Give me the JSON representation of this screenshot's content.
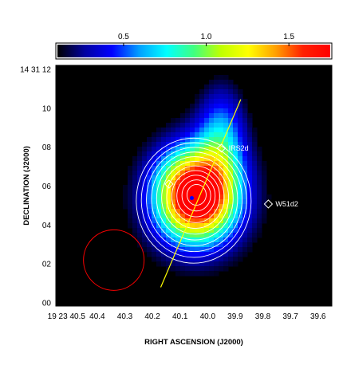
{
  "chart_data": {
    "type": "heatmap",
    "title": "",
    "xlabel": "RIGHT ASCENSION (J2000)",
    "ylabel": "DECLINATION (J2000)",
    "colorbar": {
      "ticks": [
        0.5,
        1.0,
        1.5
      ],
      "tick_labels": [
        "0.5",
        "1.0",
        "1.5"
      ],
      "range": [
        0.1,
        1.75
      ],
      "colormap": [
        "#000000",
        "#0000a0",
        "#0000ff",
        "#00a0ff",
        "#00ffff",
        "#40ff80",
        "#c0ff00",
        "#ffff00",
        "#ffa000",
        "#ff2000",
        "#ff0000"
      ]
    },
    "x_axis": {
      "range": [
        40.55,
        39.55
      ],
      "ticks": [
        40.5,
        40.4,
        40.3,
        40.2,
        40.1,
        40.0,
        39.9,
        39.8,
        39.7,
        39.6
      ],
      "tick_labels": [
        "19 23 40.5",
        "40.4",
        "40.3",
        "40.2",
        "40.1",
        "40.0",
        "39.9",
        "39.8",
        "39.7",
        "39.6"
      ]
    },
    "y_axis": {
      "range": [
        -0.16,
        12.2
      ],
      "ticks": [
        0,
        2,
        4,
        6,
        8,
        10,
        12
      ],
      "tick_labels": [
        "00",
        "02",
        "04",
        "06",
        "08",
        "10",
        "14 31 12"
      ]
    },
    "sources": [
      {
        "name": "IRS2d",
        "ra": 39.95,
        "dec": 7.95,
        "marker": "diamond",
        "color": "#ffffff"
      },
      {
        "name": "W51d2",
        "ra": 39.78,
        "dec": 5.08,
        "marker": "diamond",
        "color": "#ffffff"
      },
      {
        "name": "",
        "ra": 40.14,
        "dec": 6.1,
        "marker": "diamond",
        "color": "#ffffff",
        "label_color": "#c040ff"
      }
    ],
    "emission_peak": {
      "ra": 40.04,
      "dec": 5.55,
      "peak_value": 1.75
    },
    "contours": {
      "color": "#ffffff",
      "count": 11
    },
    "line": {
      "color": "#ffff00",
      "from": {
        "ra": 40.17,
        "dec": 0.8
      },
      "to": {
        "ra": 39.88,
        "dec": 10.45
      }
    },
    "beam": {
      "color": "#ff0000",
      "ra": 40.34,
      "dec": 2.2
    }
  }
}
